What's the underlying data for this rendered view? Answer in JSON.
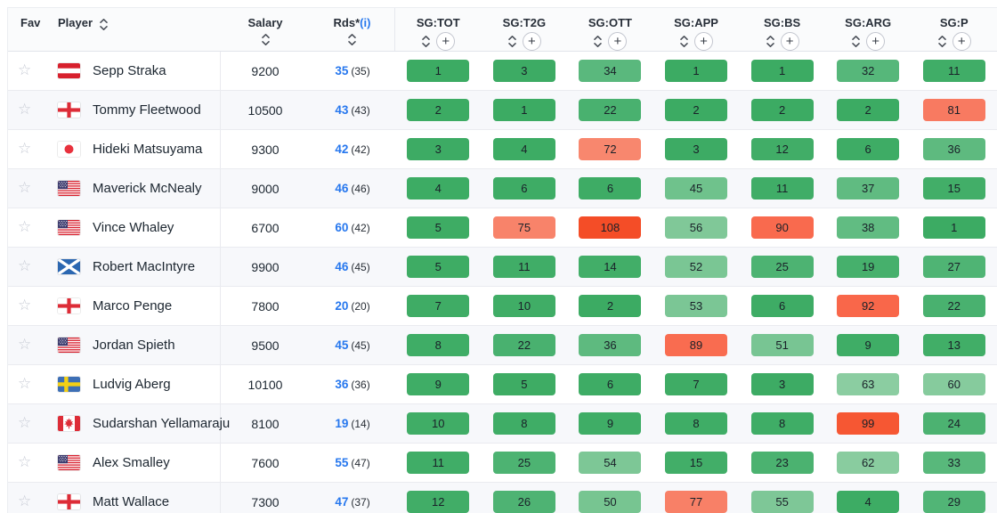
{
  "header": {
    "fav": "Fav",
    "player": "Player",
    "salary": "Salary",
    "rounds": "Rds*",
    "rounds_info": "(i)",
    "sg_columns": [
      "SG:TOT",
      "SG:T2G",
      "SG:OTT",
      "SG:APP",
      "SG:BS",
      "SG:ARG",
      "SG:P"
    ],
    "plus_label": "+"
  },
  "icons": {
    "favorite_star": "☆",
    "sort": "sort-chevrons-icon",
    "add_column": "plus-circle-icon"
  },
  "colors": {
    "link_blue": "#2677ee",
    "header_bg": "#fafbfc",
    "row_alt_bg": "#f7f8fb",
    "row_border": "#eaebf0",
    "rank_scale": [
      [
        1,
        "#3cab63"
      ],
      [
        15,
        "#42ae68"
      ],
      [
        30,
        "#52b577"
      ],
      [
        45,
        "#6fc28c"
      ],
      [
        56,
        "#80c898"
      ],
      [
        65,
        "#8ecea3"
      ],
      [
        70,
        "#f88a71"
      ],
      [
        81,
        "#f87a61"
      ],
      [
        92,
        "#f9674a"
      ],
      [
        101,
        "#f5522c"
      ],
      [
        110,
        "#f44b25"
      ]
    ]
  },
  "players": [
    {
      "name": "Sepp Straka",
      "country": "austria",
      "salary": "9200",
      "rounds": "35",
      "rounds_paren": "(35)",
      "sg": [
        1,
        3,
        34,
        1,
        1,
        32,
        11
      ]
    },
    {
      "name": "Tommy Fleetwood",
      "country": "england",
      "salary": "10500",
      "rounds": "43",
      "rounds_paren": "(43)",
      "sg": [
        2,
        1,
        22,
        2,
        2,
        2,
        81
      ]
    },
    {
      "name": "Hideki Matsuyama",
      "country": "japan",
      "salary": "9300",
      "rounds": "42",
      "rounds_paren": "(42)",
      "sg": [
        3,
        4,
        72,
        3,
        12,
        6,
        36
      ]
    },
    {
      "name": "Maverick McNealy",
      "country": "usa",
      "salary": "9000",
      "rounds": "46",
      "rounds_paren": "(46)",
      "sg": [
        4,
        6,
        6,
        45,
        11,
        37,
        15
      ]
    },
    {
      "name": "Vince Whaley",
      "country": "usa",
      "salary": "6700",
      "rounds": "60",
      "rounds_paren": "(42)",
      "sg": [
        5,
        75,
        108,
        56,
        90,
        38,
        1
      ]
    },
    {
      "name": "Robert MacIntyre",
      "country": "scotland",
      "salary": "9900",
      "rounds": "46",
      "rounds_paren": "(45)",
      "sg": [
        5,
        11,
        14,
        52,
        25,
        19,
        27
      ]
    },
    {
      "name": "Marco Penge",
      "country": "england",
      "salary": "7800",
      "rounds": "20",
      "rounds_paren": "(20)",
      "sg": [
        7,
        10,
        2,
        53,
        6,
        92,
        22
      ]
    },
    {
      "name": "Jordan Spieth",
      "country": "usa",
      "salary": "9500",
      "rounds": "45",
      "rounds_paren": "(45)",
      "sg": [
        8,
        22,
        36,
        89,
        51,
        9,
        13
      ]
    },
    {
      "name": "Ludvig Aberg",
      "country": "sweden",
      "salary": "10100",
      "rounds": "36",
      "rounds_paren": "(36)",
      "sg": [
        9,
        5,
        6,
        7,
        3,
        63,
        60
      ]
    },
    {
      "name": "Sudarshan Yellamaraju",
      "country": "canada",
      "salary": "8100",
      "rounds": "19",
      "rounds_paren": "(14)",
      "sg": [
        10,
        8,
        9,
        8,
        8,
        99,
        24
      ]
    },
    {
      "name": "Alex Smalley",
      "country": "usa",
      "salary": "7600",
      "rounds": "55",
      "rounds_paren": "(47)",
      "sg": [
        11,
        25,
        54,
        15,
        23,
        62,
        33
      ]
    },
    {
      "name": "Matt Wallace",
      "country": "england",
      "salary": "7300",
      "rounds": "47",
      "rounds_paren": "(37)",
      "sg": [
        12,
        26,
        50,
        77,
        55,
        4,
        29
      ]
    }
  ]
}
